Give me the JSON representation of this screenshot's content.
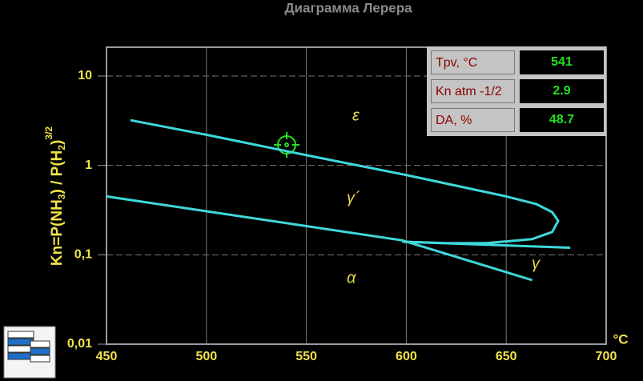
{
  "chart_data": {
    "type": "line",
    "title": "Диаграмма Лерера",
    "ylabel": [
      "Kn=P(NH",
      "3",
      ") / P(H",
      "2",
      ")",
      "3/2"
    ],
    "xunit": "°C",
    "xlim": [
      450,
      700
    ],
    "xticks": [
      450,
      500,
      550,
      600,
      650,
      700
    ],
    "ylim": [
      0.01,
      21
    ],
    "log_y": true,
    "yticks": [
      {
        "value": 0.01,
        "label": "0,01"
      },
      {
        "value": 0.1,
        "label": "0,1"
      },
      1,
      10
    ],
    "grid": true,
    "series": [
      {
        "color": "#3fd8dc",
        "x": [
          462,
          500,
          550,
          600,
          650,
          665,
          673,
          676,
          673,
          663,
          640,
          620,
          598
        ],
        "values": [
          3.2,
          2.2,
          1.3,
          0.78,
          0.45,
          0.37,
          0.3,
          0.24,
          0.18,
          0.15,
          0.135,
          0.135,
          0.14
        ]
      },
      {
        "color": "#3fd8dc",
        "x": [
          598,
          682
        ],
        "values": [
          0.14,
          0.12
        ]
      },
      {
        "color": "#3fd8dc",
        "x": [
          450,
          598,
          663
        ],
        "values": [
          0.45,
          0.145,
          0.052
        ]
      }
    ],
    "regions": [
      "ε",
      "γ´",
      "α",
      "γ"
    ]
  },
  "panel": {
    "rows": [
      [
        "Tpv, °C",
        541
      ],
      [
        "Kn atm -1/2",
        2.9
      ],
      [
        "DA, %",
        48.7
      ]
    ]
  }
}
